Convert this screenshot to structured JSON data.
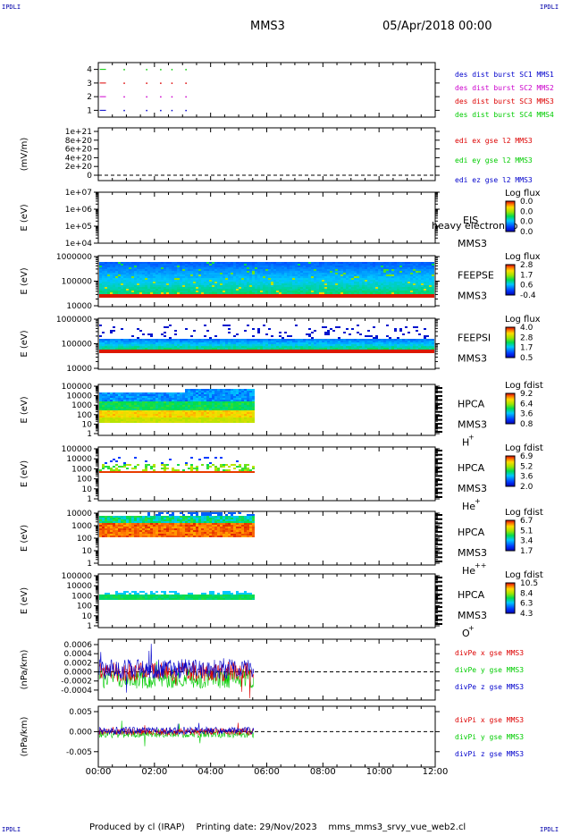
{
  "corners": {
    "tl": "IPDLI",
    "tr": "IPDLI",
    "bl": "IPDLI",
    "br": "IPDLI"
  },
  "header": {
    "title": "MMS3",
    "date": "05/Apr/2018 00:00"
  },
  "footer": {
    "produced": "Produced by cl (IRAP)",
    "printing": "Printing date: 29/Nov/2023",
    "script": "mms_mms3_srvy_vue_web2.cl"
  },
  "colors": {
    "red": "#dd0000",
    "magenta": "#cc00cc",
    "green": "#00cc00",
    "blue": "#0000cc",
    "bg": "#ffffff",
    "axis": "#000000"
  },
  "chart_data": [
    {
      "id": "p1",
      "type": "scatter",
      "ylim": [
        0.5,
        4.5
      ],
      "yticks": [
        "4",
        "3",
        "2",
        "1"
      ],
      "ytick_values": [
        4,
        3,
        2,
        1
      ],
      "series": [
        {
          "name": "des dist burst SC1 MMS1",
          "color": "#0000cc",
          "y": 1,
          "x": [
            0.05,
            0.9,
            1.7,
            2.2,
            2.6,
            3.1
          ]
        },
        {
          "name": "des dist burst SC2 MMS2",
          "color": "#cc00cc",
          "y": 2,
          "x": [
            0.05,
            0.9,
            1.7,
            2.2,
            2.6,
            3.1
          ]
        },
        {
          "name": "des dist burst SC3 MMS3",
          "color": "#dd0000",
          "y": 3,
          "x": [
            0.05,
            0.9,
            1.7,
            2.2,
            2.6,
            3.1
          ]
        },
        {
          "name": "des dist burst SC4 MMS4",
          "color": "#00cc00",
          "y": 4,
          "x": [
            0.05,
            0.9,
            1.7,
            2.2,
            2.6,
            3.1
          ]
        }
      ]
    },
    {
      "id": "p2",
      "type": "line",
      "ylabel": "(mV/m)",
      "yticks": [
        "1e+21",
        "8e+20",
        "6e+20",
        "4e+20",
        "2e+20",
        "0"
      ],
      "series": [
        {
          "name": "edi ex gse l2 MMS3",
          "color": "#dd0000"
        },
        {
          "name": "edi ey gse l2 MMS3",
          "color": "#00cc00"
        },
        {
          "name": "edi ez gse l2 MMS3",
          "color": "#0000cc"
        }
      ],
      "zero_line": true
    },
    {
      "id": "p3",
      "type": "heatmap",
      "ylabel": "E (eV)",
      "yticks": [
        "1e+07",
        "1e+06",
        "1e+05",
        "1e+04"
      ],
      "instrument": [
        "EIS",
        "MMS3"
      ],
      "overlay_label": "heavy electron to",
      "colorbar": {
        "title": "Log flux",
        "ticks": [
          "0.0",
          "0.0",
          "0.0",
          "0.0"
        ]
      }
    },
    {
      "id": "p4",
      "type": "heatmap",
      "ylabel": "E (eV)",
      "yticks": [
        "1000000",
        "100000",
        "10000"
      ],
      "instrument": [
        "FEEPSE",
        "MMS3"
      ],
      "colorbar": {
        "title": "Log flux",
        "ticks": [
          "2.8",
          "1.7",
          "0.6",
          "-0.4"
        ]
      }
    },
    {
      "id": "p5",
      "type": "heatmap",
      "ylabel": "E (eV)",
      "yticks": [
        "1000000",
        "100000",
        "10000"
      ],
      "instrument": [
        "FEEPSI",
        "MMS3"
      ],
      "colorbar": {
        "title": "Log flux",
        "ticks": [
          "4.0",
          "2.8",
          "1.7",
          "0.5"
        ]
      }
    },
    {
      "id": "p6",
      "type": "heatmap",
      "ylabel": "E (eV)",
      "yticks": [
        "100000",
        "10000",
        "1000",
        "100",
        "10",
        "1"
      ],
      "instrument": [
        "HPCA",
        "MMS3"
      ],
      "species": "H",
      "species_sup": "+",
      "colorbar": {
        "title": "Log fdist",
        "ticks": [
          "9.2",
          "6.4",
          "3.6",
          "0.8"
        ]
      }
    },
    {
      "id": "p7",
      "type": "heatmap",
      "ylabel": "E (eV)",
      "yticks": [
        "100000",
        "10000",
        "1000",
        "100",
        "10",
        "1"
      ],
      "instrument": [
        "HPCA",
        "MMS3"
      ],
      "species": "He",
      "species_sup": "+",
      "colorbar": {
        "title": "Log fdist",
        "ticks": [
          "6.9",
          "5.2",
          "3.6",
          "2.0"
        ]
      }
    },
    {
      "id": "p8",
      "type": "heatmap",
      "ylabel": "E (eV)",
      "yticks": [
        "10000",
        "1000",
        "100",
        "10",
        "1"
      ],
      "instrument": [
        "HPCA",
        "MMS3"
      ],
      "species": "He",
      "species_sup": "++",
      "colorbar": {
        "title": "Log fdist",
        "ticks": [
          "6.7",
          "5.1",
          "3.4",
          "1.7"
        ]
      }
    },
    {
      "id": "p9",
      "type": "heatmap",
      "ylabel": "E (eV)",
      "yticks": [
        "100000",
        "10000",
        "1000",
        "100",
        "10",
        "1"
      ],
      "instrument": [
        "HPCA",
        "MMS3"
      ],
      "species": "O",
      "species_sup": "+",
      "colorbar": {
        "title": "Log fdist",
        "ticks": [
          "10.5",
          "8.4",
          "6.3",
          "4.3"
        ]
      }
    },
    {
      "id": "p10",
      "type": "line",
      "ylabel": "(nPa/km)",
      "yticks": [
        "0.0006",
        "0.0004",
        "0.0002",
        "0.0000",
        "-0.0002",
        "-0.0004"
      ],
      "series": [
        {
          "name": "divPe x gse MMS3",
          "color": "#dd0000"
        },
        {
          "name": "divPe y gse MMS3",
          "color": "#00cc00"
        },
        {
          "name": "divPe z gse MMS3",
          "color": "#0000cc"
        }
      ],
      "zero_line": true,
      "data_end_hour": 5.55
    },
    {
      "id": "p11",
      "type": "line",
      "ylabel": "(nPa/km)",
      "yticks": [
        "0.005",
        "0.000",
        "-0.005"
      ],
      "series": [
        {
          "name": "divPi x gse MMS3",
          "color": "#dd0000"
        },
        {
          "name": "divPi y gse MMS3",
          "color": "#00cc00"
        },
        {
          "name": "divPi z gse MMS3",
          "color": "#0000cc"
        }
      ],
      "zero_line": true,
      "data_end_hour": 5.55
    },
    {
      "id": "xaxis",
      "xlim": [
        0,
        12
      ],
      "xticks": [
        "00:00",
        "02:00",
        "04:00",
        "06:00",
        "08:00",
        "10:00",
        "12:00"
      ]
    }
  ]
}
